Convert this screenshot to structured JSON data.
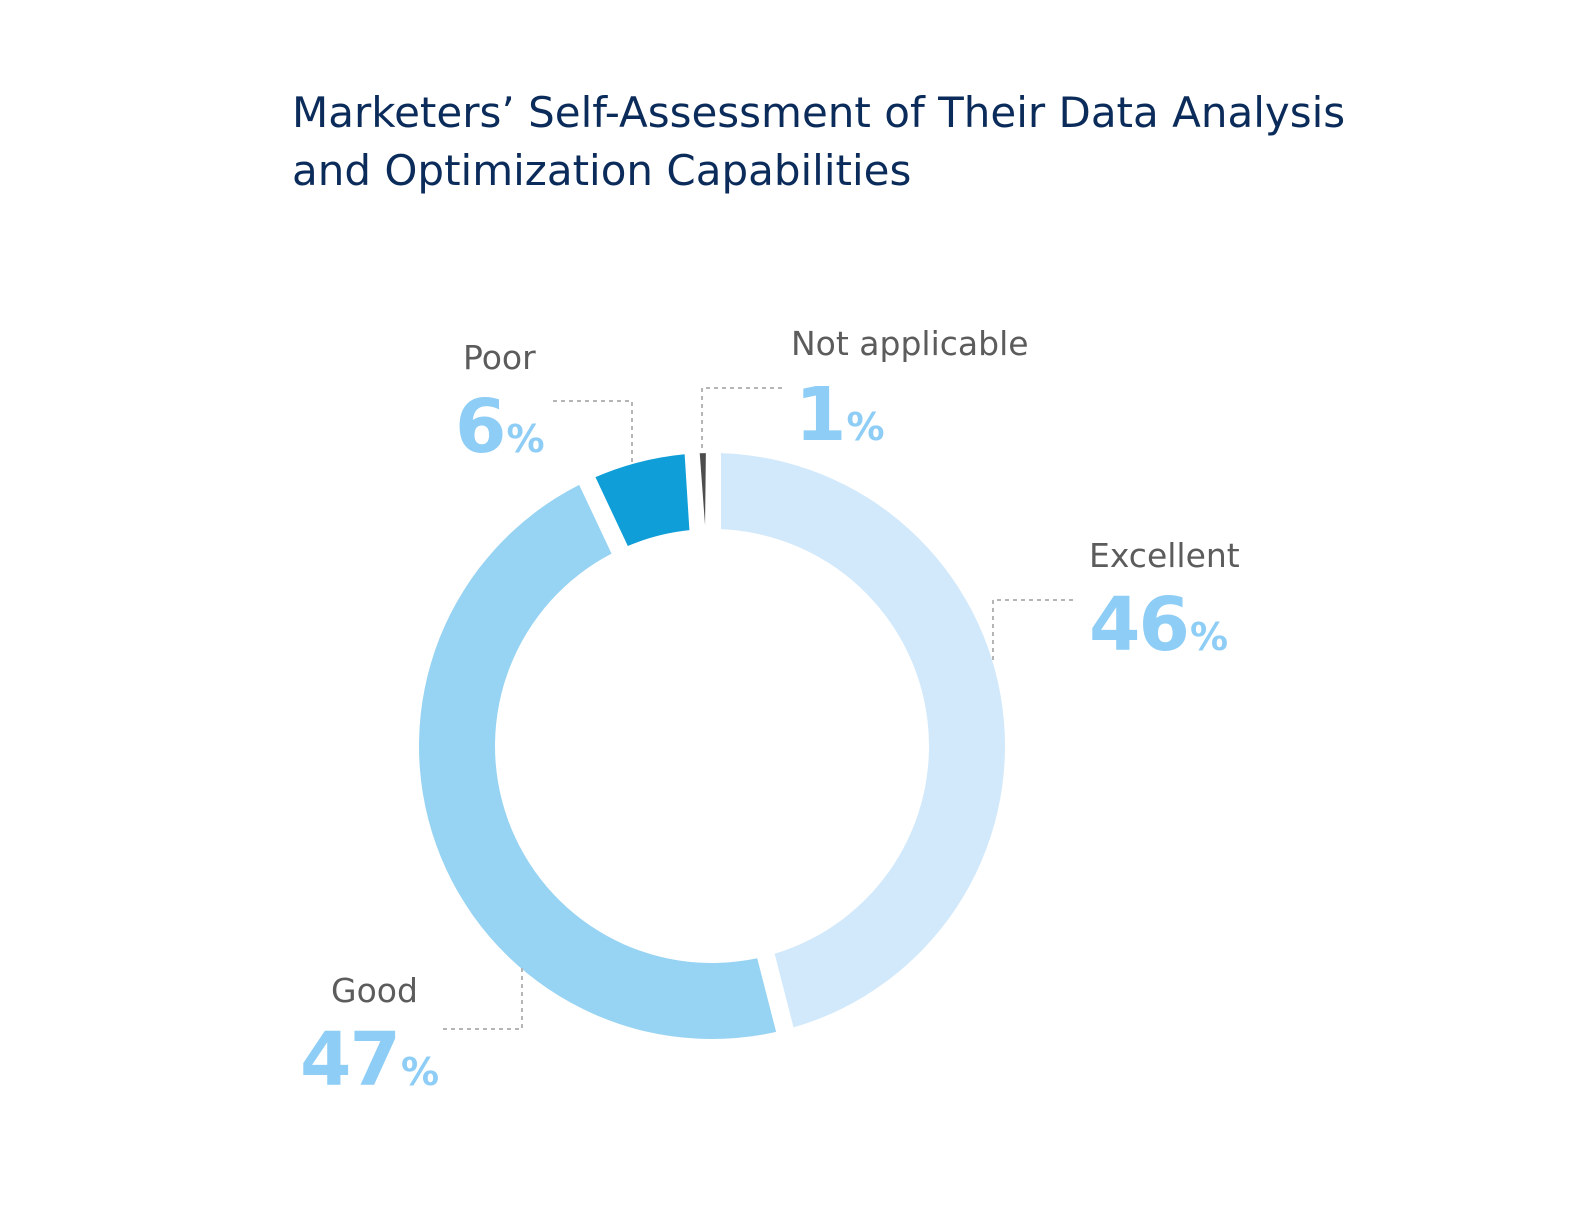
{
  "title_line1": "Marketers’ Self-Assessment of Their Data Analysis",
  "title_line2": "and Optimization Capabilities",
  "chart_data": {
    "type": "pie",
    "variant": "donut",
    "title": "Marketers’ Self-Assessment of Their Data Analysis and Optimization Capabilities",
    "unit": "%",
    "categories": [
      "Excellent",
      "Good",
      "Poor",
      "Not applicable"
    ],
    "values": [
      46,
      47,
      6,
      1
    ],
    "labels": [
      "46",
      "47",
      "6",
      "1"
    ],
    "colors": [
      "#d2e9fb",
      "#97d3f2",
      "#0f9ed8",
      "#4d4d4d"
    ],
    "label_color": "#8ecdf5",
    "legend": "none"
  }
}
